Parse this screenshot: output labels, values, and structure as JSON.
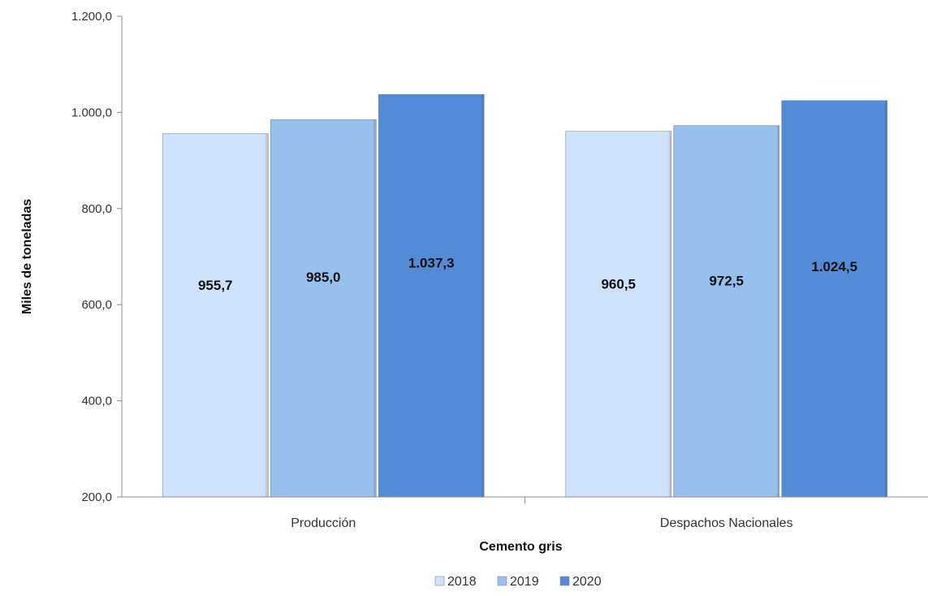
{
  "chart_data": {
    "type": "bar",
    "title": "",
    "xlabel": "Cemento gris",
    "ylabel": "Miles de toneladas",
    "categories": [
      "Producción",
      "Despachos Nacionales"
    ],
    "series": [
      {
        "name": "2018",
        "values": [
          955.7,
          960.5
        ],
        "labels": [
          "955,7",
          "960,5"
        ],
        "color": "#cfe2f9"
      },
      {
        "name": "2019",
        "values": [
          985.0,
          972.5
        ],
        "labels": [
          "985,0",
          "972,5"
        ],
        "color": "#97c0ee"
      },
      {
        "name": "2020",
        "values": [
          1037.3,
          1024.5
        ],
        "labels": [
          "1.037,3",
          "1.024,5"
        ],
        "color": "#548bd6"
      }
    ],
    "ylim": [
      200,
      1200
    ],
    "yticks": [
      200,
      400,
      600,
      800,
      1000,
      1200
    ],
    "ytick_labels": [
      "200,0",
      "400,0",
      "600,0",
      "800,0",
      "1.000,0",
      "1.200,0"
    ],
    "grid": false,
    "legend": "bottom"
  }
}
